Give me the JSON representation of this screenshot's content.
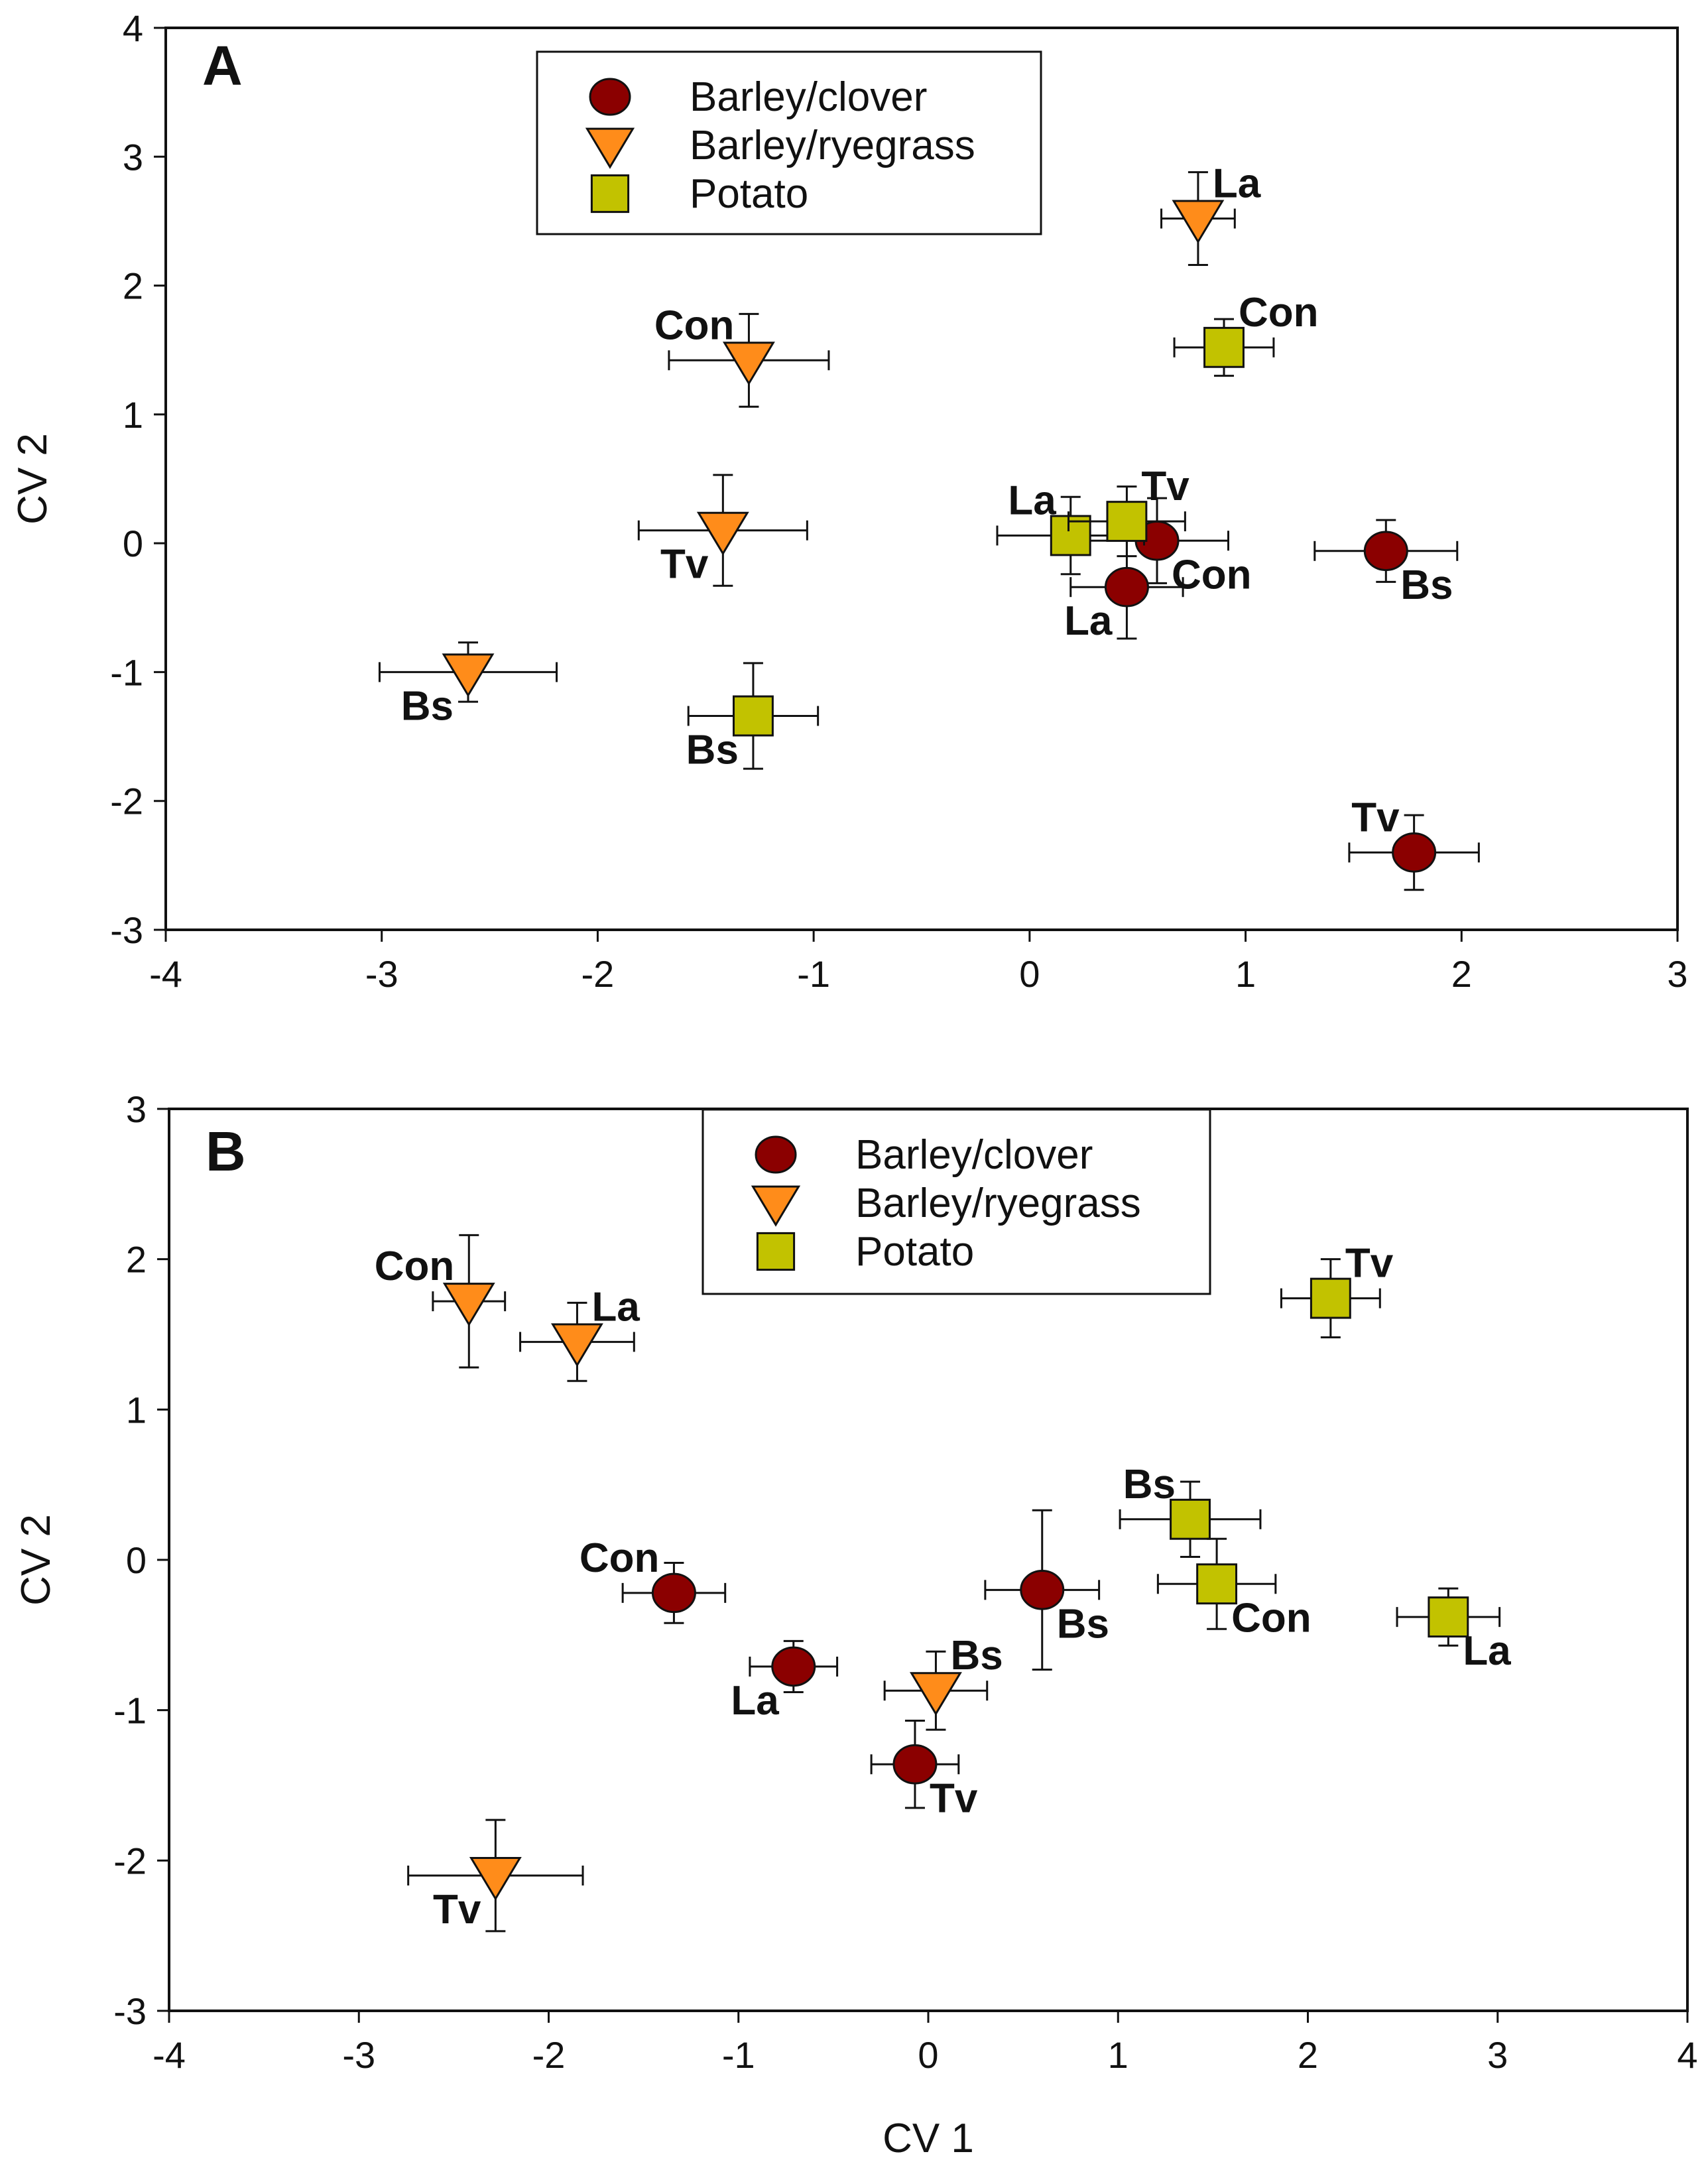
{
  "figure": {
    "x_axis_title": "CV 1",
    "y_axis_title": "CV 2"
  },
  "legend_entries": [
    {
      "label": "Barley/clover",
      "marker": "circle",
      "color": "#8b0000"
    },
    {
      "label": "Barley/ryegrass",
      "marker": "triangle-down",
      "color": "#ff8c1a"
    },
    {
      "label": "Potato",
      "marker": "square",
      "color": "#c2c200"
    }
  ],
  "chart_data": [
    {
      "type": "scatter",
      "panel": "A",
      "title": "",
      "xlabel": "",
      "ylabel": "CV 2",
      "xlim": [
        -4,
        3
      ],
      "ylim": [
        -3,
        4
      ],
      "xticks": [
        -4,
        -3,
        -2,
        -1,
        0,
        1,
        2,
        3
      ],
      "yticks": [
        -3,
        -2,
        -1,
        0,
        1,
        2,
        3,
        4
      ],
      "legend_position": "top-center",
      "series": [
        {
          "name": "Barley/clover",
          "points": [
            {
              "label": "Bs",
              "x": 1.65,
              "y": -0.06,
              "xerr": 0.33,
              "yerr": 0.24,
              "label_side": "lower-right"
            },
            {
              "label": "Tv",
              "x": 1.78,
              "y": -2.4,
              "xerr": 0.3,
              "yerr": 0.29,
              "label_side": "upper-left"
            },
            {
              "label": "Con",
              "x": 0.59,
              "y": 0.02,
              "xerr": 0.33,
              "yerr": 0.33,
              "label_side": "lower-right"
            },
            {
              "label": "La",
              "x": 0.45,
              "y": -0.34,
              "xerr": 0.26,
              "yerr": 0.4,
              "label_side": "lower-left"
            }
          ]
        },
        {
          "name": "Barley/ryegrass",
          "points": [
            {
              "label": "La",
              "x": 0.78,
              "y": 2.52,
              "xerr": 0.17,
              "yerr": 0.36,
              "label_side": "upper-right"
            },
            {
              "label": "Con",
              "x": -1.3,
              "y": 1.42,
              "xerr": 0.37,
              "yerr": 0.36,
              "label_side": "upper-left"
            },
            {
              "label": "Tv",
              "x": -1.42,
              "y": 0.1,
              "xerr": 0.39,
              "yerr": 0.43,
              "label_side": "lower-left"
            },
            {
              "label": "Bs",
              "x": -2.6,
              "y": -1.0,
              "xerr": 0.41,
              "yerr": 0.23,
              "label_side": "lower-left"
            }
          ]
        },
        {
          "name": "Potato",
          "points": [
            {
              "label": "Con",
              "x": 0.9,
              "y": 1.52,
              "xerr": 0.23,
              "yerr": 0.22,
              "label_side": "upper-right"
            },
            {
              "label": "La",
              "x": 0.19,
              "y": 0.06,
              "xerr": 0.34,
              "yerr": 0.3,
              "label_side": "upper-left"
            },
            {
              "label": "Tv",
              "x": 0.45,
              "y": 0.17,
              "xerr": 0.27,
              "yerr": 0.27,
              "label_side": "upper-right"
            },
            {
              "label": "Bs",
              "x": -1.28,
              "y": -1.34,
              "xerr": 0.3,
              "yerr": 0.41,
              "label_side": "lower-left"
            }
          ]
        }
      ]
    },
    {
      "type": "scatter",
      "panel": "B",
      "title": "",
      "xlabel": "CV 1",
      "ylabel": "CV 2",
      "xlim": [
        -4,
        4
      ],
      "ylim": [
        -3,
        3
      ],
      "xticks": [
        -4,
        -3,
        -2,
        -1,
        0,
        1,
        2,
        3,
        4
      ],
      "yticks": [
        -3,
        -2,
        -1,
        0,
        1,
        2,
        3
      ],
      "legend_position": "top-center",
      "series": [
        {
          "name": "Barley/clover",
          "points": [
            {
              "label": "Con",
              "x": -1.34,
              "y": -0.22,
              "xerr": 0.27,
              "yerr": 0.2,
              "label_side": "upper-left"
            },
            {
              "label": "La",
              "x": -0.71,
              "y": -0.71,
              "xerr": 0.23,
              "yerr": 0.17,
              "label_side": "lower-left"
            },
            {
              "label": "Tv",
              "x": -0.07,
              "y": -1.36,
              "xerr": 0.23,
              "yerr": 0.29,
              "label_side": "lower-right"
            },
            {
              "label": "Bs",
              "x": 0.6,
              "y": -0.2,
              "xerr": 0.3,
              "yerr": 0.53,
              "label_side": "lower-right"
            }
          ]
        },
        {
          "name": "Barley/ryegrass",
          "points": [
            {
              "label": "Con",
              "x": -2.42,
              "y": 1.72,
              "xerr": 0.19,
              "yerr": 0.44,
              "label_side": "upper-left"
            },
            {
              "label": "La",
              "x": -1.85,
              "y": 1.45,
              "xerr": 0.3,
              "yerr": 0.26,
              "label_side": "upper-right"
            },
            {
              "label": "Bs",
              "x": 0.04,
              "y": -0.87,
              "xerr": 0.27,
              "yerr": 0.26,
              "label_side": "upper-right"
            },
            {
              "label": "Tv",
              "x": -2.28,
              "y": -2.1,
              "xerr": 0.46,
              "yerr": 0.37,
              "label_side": "lower-left"
            }
          ]
        },
        {
          "name": "Potato",
          "points": [
            {
              "label": "Tv",
              "x": 2.12,
              "y": 1.74,
              "xerr": 0.26,
              "yerr": 0.26,
              "label_side": "upper-right"
            },
            {
              "label": "Bs",
              "x": 1.38,
              "y": 0.27,
              "xerr": 0.37,
              "yerr": 0.25,
              "label_side": "upper-left"
            },
            {
              "label": "Con",
              "x": 1.52,
              "y": -0.16,
              "xerr": 0.31,
              "yerr": 0.3,
              "label_side": "lower-right"
            },
            {
              "label": "La",
              "x": 2.74,
              "y": -0.38,
              "xerr": 0.27,
              "yerr": 0.19,
              "label_side": "lower-right"
            }
          ]
        }
      ]
    }
  ]
}
